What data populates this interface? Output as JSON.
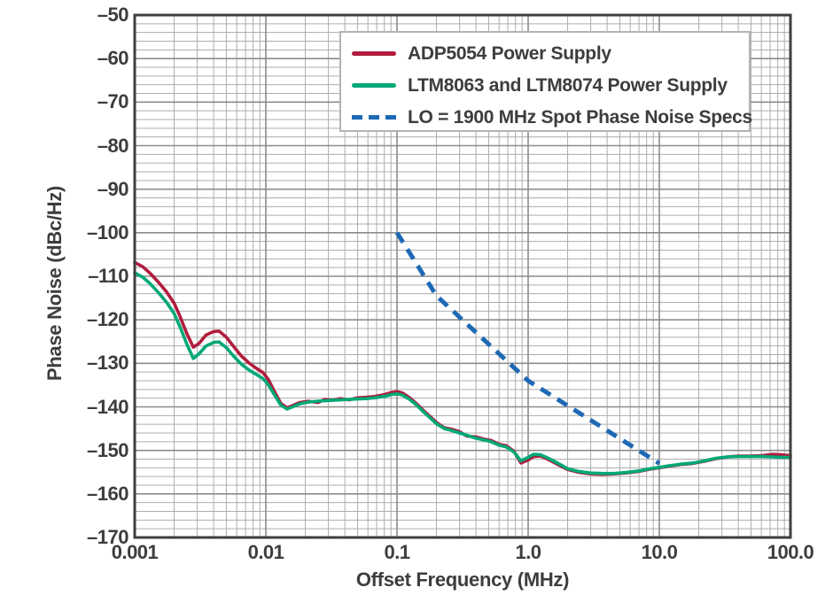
{
  "chart_data": {
    "type": "line",
    "xlabel": "Offset Frequency (MHz)",
    "ylabel": "Phase Noise (dBc/Hz)",
    "x_scale": "log",
    "xlim": [
      0.001,
      100
    ],
    "ylim": [
      -170,
      -50
    ],
    "grid": {
      "x_minor": true,
      "y_major_step": 10,
      "y_minor_step": 2
    },
    "x_ticks": {
      "values": [
        0.001,
        0.01,
        0.1,
        1,
        10,
        100
      ],
      "labels": [
        "0.001",
        "0.01",
        "0.1",
        "1.0",
        "10.0",
        "100.0"
      ]
    },
    "y_ticks": {
      "values": [
        -50,
        -60,
        -70,
        -80,
        -90,
        -100,
        -110,
        -120,
        -130,
        -140,
        -150,
        -160,
        -170
      ],
      "labels": [
        "–50",
        "–60",
        "–70",
        "–80",
        "–90",
        "–100",
        "–110",
        "–120",
        "–130",
        "–140",
        "–150",
        "–160",
        "–170"
      ]
    },
    "legend": {
      "position": "top-inside",
      "entries": [
        {
          "label": "ADP5054 Power Supply",
          "series": 0
        },
        {
          "label": "LTM8063 and LTM8074 Power Supply",
          "series": 1
        },
        {
          "label": "LO = 1900 MHz Spot Phase Noise Specs",
          "series": 2
        }
      ]
    },
    "series": [
      {
        "name": "ADP5054 Power Supply",
        "color": "#b21c3e",
        "style": "solid",
        "width": 3.6,
        "points": [
          [
            0.001,
            -106.8
          ],
          [
            0.00115,
            -107.8
          ],
          [
            0.0013,
            -109.2
          ],
          [
            0.0015,
            -111.2
          ],
          [
            0.00175,
            -113.6
          ],
          [
            0.002,
            -116.2
          ],
          [
            0.0022,
            -119.0
          ],
          [
            0.0025,
            -123.2
          ],
          [
            0.0028,
            -126.3
          ],
          [
            0.0031,
            -125.4
          ],
          [
            0.0035,
            -123.5
          ],
          [
            0.004,
            -122.7
          ],
          [
            0.0044,
            -122.6
          ],
          [
            0.005,
            -124.0
          ],
          [
            0.0057,
            -126.2
          ],
          [
            0.0065,
            -128.3
          ],
          [
            0.0075,
            -130.0
          ],
          [
            0.0085,
            -131.2
          ],
          [
            0.0095,
            -132.1
          ],
          [
            0.0105,
            -133.8
          ],
          [
            0.0115,
            -136.2
          ],
          [
            0.013,
            -139.2
          ],
          [
            0.0145,
            -140.2
          ],
          [
            0.016,
            -139.7
          ],
          [
            0.018,
            -139.0
          ],
          [
            0.021,
            -138.7
          ],
          [
            0.025,
            -139.0
          ],
          [
            0.028,
            -138.3
          ],
          [
            0.032,
            -138.5
          ],
          [
            0.037,
            -138.1
          ],
          [
            0.043,
            -138.4
          ],
          [
            0.05,
            -137.9
          ],
          [
            0.058,
            -137.8
          ],
          [
            0.068,
            -137.6
          ],
          [
            0.08,
            -137.2
          ],
          [
            0.09,
            -136.7
          ],
          [
            0.1,
            -136.5
          ],
          [
            0.11,
            -136.8
          ],
          [
            0.125,
            -137.9
          ],
          [
            0.14,
            -139.2
          ],
          [
            0.16,
            -140.9
          ],
          [
            0.18,
            -142.3
          ],
          [
            0.2,
            -143.6
          ],
          [
            0.23,
            -144.8
          ],
          [
            0.26,
            -145.1
          ],
          [
            0.3,
            -145.7
          ],
          [
            0.34,
            -146.7
          ],
          [
            0.4,
            -146.9
          ],
          [
            0.46,
            -147.4
          ],
          [
            0.52,
            -147.7
          ],
          [
            0.6,
            -148.6
          ],
          [
            0.68,
            -148.9
          ],
          [
            0.78,
            -150.2
          ],
          [
            0.88,
            -152.9
          ],
          [
            1.0,
            -152.2
          ],
          [
            1.1,
            -151.4
          ],
          [
            1.25,
            -151.3
          ],
          [
            1.45,
            -152.2
          ],
          [
            1.7,
            -153.3
          ],
          [
            2.0,
            -154.4
          ],
          [
            2.4,
            -155.0
          ],
          [
            3.0,
            -155.4
          ],
          [
            3.7,
            -155.5
          ],
          [
            4.5,
            -155.4
          ],
          [
            5.5,
            -155.2
          ],
          [
            7.0,
            -154.8
          ],
          [
            8.5,
            -154.3
          ],
          [
            10,
            -154.0
          ],
          [
            12,
            -153.6
          ],
          [
            15,
            -153.2
          ],
          [
            18,
            -153.0
          ],
          [
            22,
            -152.5
          ],
          [
            27,
            -151.9
          ],
          [
            33,
            -151.5
          ],
          [
            40,
            -151.3
          ],
          [
            50,
            -151.3
          ],
          [
            60,
            -151.2
          ],
          [
            72,
            -150.9
          ],
          [
            85,
            -151.0
          ],
          [
            100,
            -151.2
          ]
        ]
      },
      {
        "name": "LTM8063 and LTM8074 Power Supply",
        "color": "#00a877",
        "style": "solid",
        "width": 3.6,
        "points": [
          [
            0.001,
            -109.2
          ],
          [
            0.00115,
            -110.2
          ],
          [
            0.0013,
            -111.6
          ],
          [
            0.0015,
            -113.6
          ],
          [
            0.00175,
            -116.0
          ],
          [
            0.002,
            -118.6
          ],
          [
            0.0022,
            -121.4
          ],
          [
            0.0025,
            -125.6
          ],
          [
            0.0028,
            -128.9
          ],
          [
            0.0031,
            -127.8
          ],
          [
            0.0035,
            -126.0
          ],
          [
            0.004,
            -125.2
          ],
          [
            0.0044,
            -125.1
          ],
          [
            0.005,
            -126.4
          ],
          [
            0.0057,
            -128.4
          ],
          [
            0.0065,
            -130.2
          ],
          [
            0.0075,
            -131.6
          ],
          [
            0.0085,
            -132.6
          ],
          [
            0.0095,
            -133.5
          ],
          [
            0.0105,
            -135.0
          ],
          [
            0.0115,
            -137.0
          ],
          [
            0.013,
            -139.6
          ],
          [
            0.0145,
            -140.5
          ],
          [
            0.016,
            -140.0
          ],
          [
            0.018,
            -139.3
          ],
          [
            0.021,
            -138.9
          ],
          [
            0.025,
            -138.7
          ],
          [
            0.028,
            -138.6
          ],
          [
            0.032,
            -138.5
          ],
          [
            0.037,
            -138.4
          ],
          [
            0.043,
            -138.3
          ],
          [
            0.05,
            -138.2
          ],
          [
            0.058,
            -138.1
          ],
          [
            0.068,
            -137.9
          ],
          [
            0.08,
            -137.6
          ],
          [
            0.09,
            -137.2
          ],
          [
            0.1,
            -137.0
          ],
          [
            0.11,
            -137.3
          ],
          [
            0.125,
            -138.3
          ],
          [
            0.14,
            -139.5
          ],
          [
            0.16,
            -141.2
          ],
          [
            0.18,
            -142.6
          ],
          [
            0.2,
            -143.9
          ],
          [
            0.23,
            -145.0
          ],
          [
            0.26,
            -145.4
          ],
          [
            0.3,
            -146.0
          ],
          [
            0.34,
            -146.5
          ],
          [
            0.4,
            -147.2
          ],
          [
            0.46,
            -147.6
          ],
          [
            0.52,
            -148.0
          ],
          [
            0.6,
            -148.8
          ],
          [
            0.68,
            -149.2
          ],
          [
            0.78,
            -150.4
          ],
          [
            0.88,
            -152.4
          ],
          [
            1.0,
            -151.6
          ],
          [
            1.1,
            -150.9
          ],
          [
            1.25,
            -151.0
          ],
          [
            1.45,
            -151.9
          ],
          [
            1.7,
            -153.0
          ],
          [
            2.0,
            -154.2
          ],
          [
            2.4,
            -154.8
          ],
          [
            3.0,
            -155.2
          ],
          [
            3.7,
            -155.3
          ],
          [
            4.5,
            -155.3
          ],
          [
            5.5,
            -155.1
          ],
          [
            7.0,
            -154.7
          ],
          [
            8.5,
            -154.2
          ],
          [
            10,
            -153.9
          ],
          [
            12,
            -153.5
          ],
          [
            15,
            -153.1
          ],
          [
            18,
            -152.9
          ],
          [
            22,
            -152.4
          ],
          [
            27,
            -151.8
          ],
          [
            33,
            -151.5
          ],
          [
            40,
            -151.4
          ],
          [
            50,
            -151.4
          ],
          [
            60,
            -151.4
          ],
          [
            72,
            -151.5
          ],
          [
            85,
            -151.6
          ],
          [
            100,
            -151.6
          ]
        ]
      },
      {
        "name": "LO = 1900 MHz Spot Phase Noise Specs",
        "color": "#1e69b5",
        "style": "dashed",
        "width": 5,
        "points": [
          [
            0.1,
            -100
          ],
          [
            0.2,
            -114.5
          ],
          [
            1.0,
            -134
          ],
          [
            10,
            -153
          ]
        ]
      }
    ]
  },
  "style": {
    "text_color": "#3d3d3d",
    "grid_major_color": "#8c8c8c",
    "grid_minor_color": "#adadad",
    "plot_border_color": "#3f3f3f",
    "legend_border_color": "#b3b3b3",
    "background": "#ffffff"
  }
}
